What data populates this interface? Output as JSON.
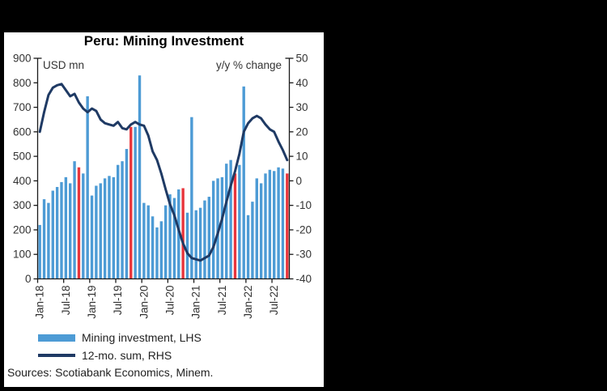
{
  "source_note": "Sources: Scotiabank Economics, Minem.",
  "chart_data": {
    "type": "bar",
    "title": "Peru: Mining Investment",
    "legend_position": "bottom-left",
    "grid": false,
    "x": [
      "Jan-18",
      "Feb-18",
      "Mar-18",
      "Apr-18",
      "May-18",
      "Jun-18",
      "Jul-18",
      "Aug-18",
      "Sep-18",
      "Oct-18",
      "Nov-18",
      "Dec-18",
      "Jan-19",
      "Feb-19",
      "Mar-19",
      "Apr-19",
      "May-19",
      "Jun-19",
      "Jul-19",
      "Aug-19",
      "Sep-19",
      "Oct-19",
      "Nov-19",
      "Dec-19",
      "Jan-20",
      "Feb-20",
      "Mar-20",
      "Apr-20",
      "May-20",
      "Jun-20",
      "Jul-20",
      "Aug-20",
      "Sep-20",
      "Oct-20",
      "Nov-20",
      "Dec-20",
      "Jan-21",
      "Feb-21",
      "Mar-21",
      "Apr-21",
      "May-21",
      "Jun-21",
      "Jul-21",
      "Aug-21",
      "Sep-21",
      "Oct-21",
      "Nov-21",
      "Dec-21",
      "Jan-22",
      "Feb-22",
      "Mar-22",
      "Apr-22",
      "May-22",
      "Jun-22",
      "Jul-22",
      "Aug-22",
      "Sep-22",
      "Oct-22"
    ],
    "x_tick_every": 6,
    "bar_series": {
      "name": "Mining investment, LHS",
      "axis": "left",
      "values": [
        220,
        325,
        310,
        360,
        375,
        395,
        415,
        390,
        480,
        455,
        430,
        745,
        340,
        380,
        390,
        410,
        420,
        415,
        465,
        480,
        530,
        620,
        620,
        830,
        310,
        300,
        255,
        210,
        235,
        300,
        345,
        330,
        365,
        370,
        270,
        660,
        280,
        290,
        320,
        335,
        400,
        410,
        415,
        470,
        485,
        430,
        465,
        785,
        260,
        315,
        410,
        390,
        430,
        445,
        440,
        455,
        450,
        430
      ]
    },
    "line_series": {
      "name": "12-mo. sum, RHS",
      "axis": "right",
      "values": [
        20,
        28,
        35,
        38,
        39,
        39.5,
        37,
        34.5,
        35.5,
        32,
        29.5,
        28,
        29.5,
        28.5,
        25,
        23.5,
        23,
        22.5,
        24,
        21.5,
        21,
        23,
        24,
        23,
        22.5,
        18.5,
        12,
        8.5,
        3,
        -3.5,
        -9.5,
        -14,
        -20,
        -25.5,
        -29.5,
        -31.5,
        -32,
        -32.5,
        -31.5,
        -30.5,
        -27,
        -21.5,
        -15.5,
        -8.5,
        -2,
        4,
        11,
        20,
        23.5,
        25.5,
        26.5,
        25.5,
        23,
        21,
        20,
        16,
        12.5,
        8.5
      ]
    },
    "highlight_indices": [
      9,
      21,
      33,
      45,
      57
    ],
    "highlight_note": "October bars shown in red",
    "left_axis": {
      "label": "USD mn",
      "min": 0,
      "max": 900,
      "step": 100
    },
    "right_axis": {
      "label": "y/y % change",
      "min": -40,
      "max": 50,
      "step": 10
    },
    "colors": {
      "bar": "#4D9BD5",
      "bar_highlight": "#E8353C",
      "line": "#1F3A64",
      "axis": "#1a1a1a",
      "tick_text": "#333333",
      "panel_bg": "#FFFFFF",
      "frame_bg": "#000000"
    }
  }
}
